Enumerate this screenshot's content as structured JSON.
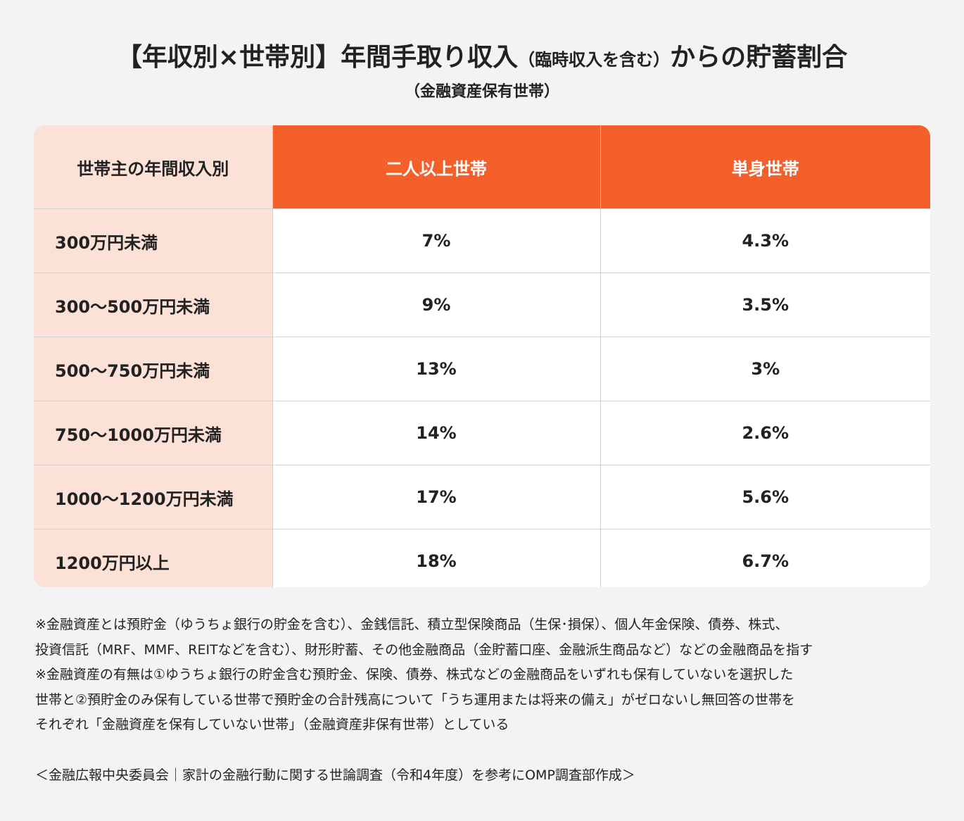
{
  "title": {
    "main": "【年収別×世帯別】年間手取り収入",
    "note": "（臨時収入を含む）",
    "end": "からの貯蓄割合"
  },
  "subtitle": "（金融資産保有世帯）",
  "table": {
    "header": [
      "世帯主の年間収入別",
      "二人以上世帯",
      "単身世帯"
    ],
    "rows": [
      [
        "300万円未満",
        "7%",
        "4.3%"
      ],
      [
        "300〜500万円未満",
        "9%",
        "3.5%"
      ],
      [
        "500〜750万円未満",
        "13%",
        "3%"
      ],
      [
        "750〜1000万円未満",
        "14%",
        "2.6%"
      ],
      [
        "1000〜1200万円未満",
        "17%",
        "5.6%"
      ],
      [
        "1200万円以上",
        "18%",
        "6.7%"
      ]
    ]
  },
  "notes": [
    "※金融資産とは預貯金（ゆうちょ銀行の貯金を含む）、金銭信託、積立型保険商品（生保･損保）、個人年金保険、債券、株式、",
    "投資信託（MRF、MMF、REITなどを含む）、財形貯蓄、その他金融商品（金貯蓄口座、金融派生商品など）などの金融商品を指す",
    "※金融資産の有無は①ゆうちょ銀行の貯金含む預貯金、保険、債券、株式などの金融商品をいずれも保有していないを選択した",
    "世帯と②預貯金のみ保有している世帯で預貯金の合計残高について「うち運用または将来の備え」がゼロないし無回答の世帯を",
    "それぞれ「金融資産を保有していない世帯」（金融資産非保有世帯）としている"
  ],
  "source": "＜金融広報中央委員会｜家計の金融行動に関する世論調査（令和4年度）を参考にOMP調査部作成＞"
}
